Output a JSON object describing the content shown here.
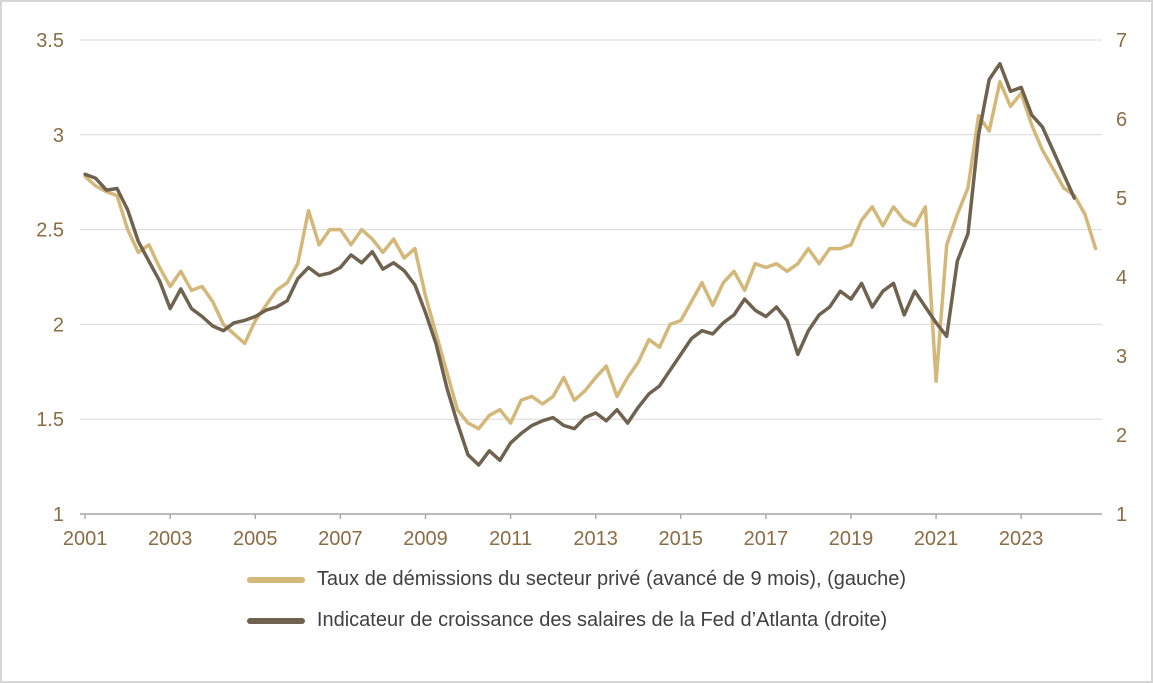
{
  "chart_data": {
    "type": "line",
    "title": "",
    "xlabel": "",
    "ylabel_left": "",
    "ylabel_right": "",
    "grid": "horizontal",
    "legend_position": "bottom",
    "xlim": [
      2000.88,
      2024.9
    ],
    "x_ticks": [
      2001,
      2003,
      2005,
      2007,
      2009,
      2011,
      2013,
      2015,
      2017,
      2019,
      2021,
      2023
    ],
    "x_tick_labels": [
      "2001",
      "2003",
      "2005",
      "2007",
      "2009",
      "2011",
      "2013",
      "2015",
      "2017",
      "2019",
      "2021",
      "2023"
    ],
    "left_axis": {
      "lim": [
        1,
        3.5
      ],
      "ticks": [
        1,
        1.5,
        2,
        2.5,
        3,
        3.5
      ],
      "tick_labels": [
        "1",
        "1.5",
        "2",
        "2.5",
        "3",
        "3.5"
      ]
    },
    "right_axis": {
      "lim": [
        1,
        7
      ],
      "ticks": [
        1,
        2,
        3,
        4,
        5,
        6,
        7
      ],
      "tick_labels": [
        "1",
        "2",
        "3",
        "4",
        "5",
        "6",
        "7"
      ]
    },
    "colors": {
      "grid": "#d9d9d9",
      "axis": "#a6a6a6",
      "tick_text": "#8c6c44",
      "legend_text": "#404040"
    },
    "series": [
      {
        "key": "quits",
        "name": "Taux de démissions du secteur privé (avancé de 9 mois), (gauche)",
        "axis": "left",
        "color": "#d4b87a",
        "x": [
          2001.0,
          2001.25,
          2001.5,
          2001.75,
          2002.0,
          2002.25,
          2002.5,
          2002.75,
          2003.0,
          2003.25,
          2003.5,
          2003.75,
          2004.0,
          2004.25,
          2004.5,
          2004.75,
          2005.0,
          2005.25,
          2005.5,
          2005.75,
          2006.0,
          2006.25,
          2006.5,
          2006.75,
          2007.0,
          2007.25,
          2007.5,
          2007.75,
          2008.0,
          2008.25,
          2008.5,
          2008.75,
          2009.0,
          2009.25,
          2009.5,
          2009.75,
          2010.0,
          2010.25,
          2010.5,
          2010.75,
          2011.0,
          2011.25,
          2011.5,
          2011.75,
          2012.0,
          2012.25,
          2012.5,
          2012.75,
          2013.0,
          2013.25,
          2013.5,
          2013.75,
          2014.0,
          2014.25,
          2014.5,
          2014.75,
          2015.0,
          2015.25,
          2015.5,
          2015.75,
          2016.0,
          2016.25,
          2016.5,
          2016.75,
          2017.0,
          2017.25,
          2017.5,
          2017.75,
          2018.0,
          2018.25,
          2018.5,
          2018.75,
          2019.0,
          2019.25,
          2019.5,
          2019.75,
          2020.0,
          2020.25,
          2020.5,
          2020.75,
          2021.0,
          2021.25,
          2021.5,
          2021.75,
          2022.0,
          2022.25,
          2022.5,
          2022.75,
          2023.0,
          2023.25,
          2023.5,
          2023.75,
          2024.0,
          2024.25,
          2024.5,
          2024.75
        ],
        "values": [
          2.78,
          2.73,
          2.7,
          2.68,
          2.5,
          2.38,
          2.42,
          2.3,
          2.2,
          2.28,
          2.18,
          2.2,
          2.12,
          2.0,
          1.95,
          1.9,
          2.02,
          2.1,
          2.18,
          2.22,
          2.32,
          2.6,
          2.42,
          2.5,
          2.5,
          2.42,
          2.5,
          2.45,
          2.38,
          2.45,
          2.35,
          2.4,
          2.15,
          1.95,
          1.75,
          1.55,
          1.48,
          1.45,
          1.52,
          1.55,
          1.48,
          1.6,
          1.62,
          1.58,
          1.62,
          1.72,
          1.6,
          1.65,
          1.72,
          1.78,
          1.62,
          1.72,
          1.8,
          1.92,
          1.88,
          2.0,
          2.02,
          2.12,
          2.22,
          2.1,
          2.22,
          2.28,
          2.18,
          2.32,
          2.3,
          2.32,
          2.28,
          2.32,
          2.4,
          2.32,
          2.4,
          2.4,
          2.42,
          2.55,
          2.62,
          2.52,
          2.62,
          2.55,
          2.52,
          2.62,
          1.7,
          2.42,
          2.58,
          2.72,
          3.1,
          3.02,
          3.28,
          3.15,
          3.22,
          3.05,
          2.92,
          2.82,
          2.72,
          2.68,
          2.58,
          2.4
        ]
      },
      {
        "key": "wage",
        "name": "Indicateur de croissance des salaires de la Fed d’Atlanta (droite)",
        "axis": "right",
        "color": "#6f6350",
        "x": [
          2001.0,
          2001.25,
          2001.5,
          2001.75,
          2002.0,
          2002.25,
          2002.5,
          2002.75,
          2003.0,
          2003.25,
          2003.5,
          2003.75,
          2004.0,
          2004.25,
          2004.5,
          2004.75,
          2005.0,
          2005.25,
          2005.5,
          2005.75,
          2006.0,
          2006.25,
          2006.5,
          2006.75,
          2007.0,
          2007.25,
          2007.5,
          2007.75,
          2008.0,
          2008.25,
          2008.5,
          2008.75,
          2009.0,
          2009.25,
          2009.5,
          2009.75,
          2010.0,
          2010.25,
          2010.5,
          2010.75,
          2011.0,
          2011.25,
          2011.5,
          2011.75,
          2012.0,
          2012.25,
          2012.5,
          2012.75,
          2013.0,
          2013.25,
          2013.5,
          2013.75,
          2014.0,
          2014.25,
          2014.5,
          2014.75,
          2015.0,
          2015.25,
          2015.5,
          2015.75,
          2016.0,
          2016.25,
          2016.5,
          2016.75,
          2017.0,
          2017.25,
          2017.5,
          2017.75,
          2018.0,
          2018.25,
          2018.5,
          2018.75,
          2019.0,
          2019.25,
          2019.5,
          2019.75,
          2020.0,
          2020.25,
          2020.5,
          2020.75,
          2021.0,
          2021.25,
          2021.5,
          2021.75,
          2022.0,
          2022.25,
          2022.5,
          2022.75,
          2023.0,
          2023.25,
          2023.5,
          2023.75,
          2024.0,
          2024.25
        ],
        "values": [
          5.3,
          5.25,
          5.1,
          5.12,
          4.85,
          4.45,
          4.2,
          3.95,
          3.6,
          3.85,
          3.6,
          3.5,
          3.38,
          3.32,
          3.42,
          3.45,
          3.5,
          3.58,
          3.62,
          3.7,
          3.98,
          4.12,
          4.02,
          4.05,
          4.12,
          4.28,
          4.18,
          4.32,
          4.1,
          4.18,
          4.08,
          3.9,
          3.55,
          3.15,
          2.6,
          2.15,
          1.75,
          1.62,
          1.8,
          1.68,
          1.9,
          2.02,
          2.12,
          2.18,
          2.22,
          2.12,
          2.08,
          2.22,
          2.28,
          2.18,
          2.32,
          2.15,
          2.35,
          2.52,
          2.62,
          2.82,
          3.02,
          3.22,
          3.32,
          3.28,
          3.42,
          3.52,
          3.72,
          3.58,
          3.5,
          3.62,
          3.45,
          3.02,
          3.32,
          3.52,
          3.62,
          3.82,
          3.72,
          3.92,
          3.62,
          3.82,
          3.92,
          3.52,
          3.82,
          3.62,
          3.42,
          3.25,
          4.2,
          4.55,
          5.8,
          6.5,
          6.7,
          6.35,
          6.4,
          6.05,
          5.9,
          5.6,
          5.3,
          5.0
        ]
      }
    ]
  }
}
